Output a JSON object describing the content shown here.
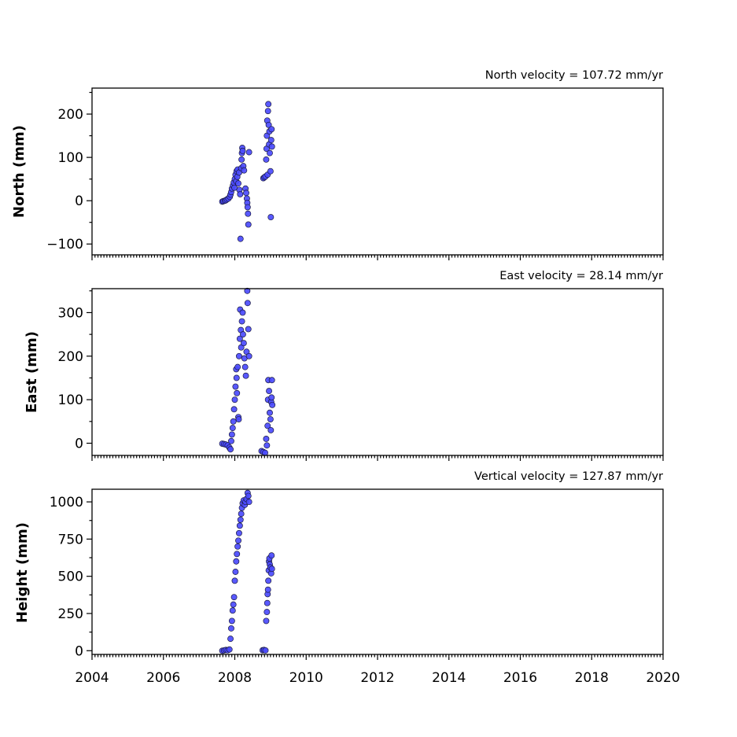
{
  "chart_data": [
    {
      "type": "scatter",
      "velocity_label": "North velocity = 107.72 mm/yr",
      "ylabel": "North (mm)",
      "xlim": [
        2004,
        2020
      ],
      "ylim": [
        -125,
        260
      ],
      "yticks": [
        -100,
        0,
        100,
        200
      ],
      "ytick_labels": [
        "−100",
        "0",
        "100",
        "200"
      ],
      "x_ticklabels_visible": false,
      "points": [
        [
          2007.65,
          -2
        ],
        [
          2007.68,
          -1
        ],
        [
          2007.72,
          0
        ],
        [
          2007.75,
          1
        ],
        [
          2007.78,
          3
        ],
        [
          2007.82,
          5
        ],
        [
          2007.86,
          9
        ],
        [
          2007.88,
          14
        ],
        [
          2007.9,
          20
        ],
        [
          2007.92,
          28
        ],
        [
          2007.95,
          35
        ],
        [
          2007.97,
          42
        ],
        [
          2007.99,
          30
        ],
        [
          2008.0,
          50
        ],
        [
          2008.02,
          60
        ],
        [
          2008.04,
          45
        ],
        [
          2008.05,
          68
        ],
        [
          2008.07,
          55
        ],
        [
          2008.08,
          72
        ],
        [
          2008.1,
          40
        ],
        [
          2008.12,
          65
        ],
        [
          2008.13,
          25
        ],
        [
          2008.15,
          15
        ],
        [
          2008.16,
          -88
        ],
        [
          2008.18,
          75
        ],
        [
          2008.19,
          95
        ],
        [
          2008.2,
          110
        ],
        [
          2008.21,
          122
        ],
        [
          2008.22,
          115
        ],
        [
          2008.24,
          80
        ],
        [
          2008.26,
          70
        ],
        [
          2008.3,
          28
        ],
        [
          2008.32,
          18
        ],
        [
          2008.34,
          5
        ],
        [
          2008.35,
          -5
        ],
        [
          2008.36,
          -15
        ],
        [
          2008.37,
          -30
        ],
        [
          2008.38,
          -55
        ],
        [
          2008.4,
          112
        ],
        [
          2008.8,
          52
        ],
        [
          2008.83,
          54
        ],
        [
          2008.86,
          56
        ],
        [
          2008.88,
          95
        ],
        [
          2008.89,
          120
        ],
        [
          2008.9,
          150
        ],
        [
          2008.91,
          185
        ],
        [
          2008.92,
          60
        ],
        [
          2008.93,
          207
        ],
        [
          2008.94,
          223
        ],
        [
          2008.95,
          175
        ],
        [
          2008.96,
          130
        ],
        [
          2008.97,
          160
        ],
        [
          2008.98,
          110
        ],
        [
          2009.0,
          68
        ],
        [
          2009.01,
          -38
        ],
        [
          2009.02,
          140
        ],
        [
          2009.03,
          165
        ],
        [
          2009.04,
          125
        ]
      ]
    },
    {
      "type": "scatter",
      "velocity_label": "East velocity = 28.14 mm/yr",
      "ylabel": "East (mm)",
      "xlim": [
        2004,
        2020
      ],
      "ylim": [
        -28,
        355
      ],
      "yticks": [
        0,
        100,
        200,
        300
      ],
      "ytick_labels": [
        "0",
        "100",
        "200",
        "300"
      ],
      "x_ticklabels_visible": false,
      "points": [
        [
          2007.65,
          -1
        ],
        [
          2007.7,
          -2
        ],
        [
          2007.75,
          -3
        ],
        [
          2007.8,
          -5
        ],
        [
          2007.85,
          -10
        ],
        [
          2007.88,
          -14
        ],
        [
          2007.9,
          5
        ],
        [
          2007.92,
          20
        ],
        [
          2007.94,
          35
        ],
        [
          2007.96,
          50
        ],
        [
          2007.98,
          78
        ],
        [
          2008.0,
          100
        ],
        [
          2008.02,
          130
        ],
        [
          2008.04,
          170
        ],
        [
          2008.05,
          150
        ],
        [
          2008.06,
          115
        ],
        [
          2008.08,
          175
        ],
        [
          2008.1,
          60
        ],
        [
          2008.11,
          55
        ],
        [
          2008.12,
          200
        ],
        [
          2008.14,
          240
        ],
        [
          2008.15,
          307
        ],
        [
          2008.17,
          260
        ],
        [
          2008.18,
          220
        ],
        [
          2008.2,
          280
        ],
        [
          2008.22,
          300
        ],
        [
          2008.23,
          250
        ],
        [
          2008.25,
          230
        ],
        [
          2008.27,
          195
        ],
        [
          2008.29,
          175
        ],
        [
          2008.31,
          155
        ],
        [
          2008.33,
          210
        ],
        [
          2008.35,
          350
        ],
        [
          2008.36,
          322
        ],
        [
          2008.38,
          262
        ],
        [
          2008.4,
          200
        ],
        [
          2008.75,
          -18
        ],
        [
          2008.8,
          -20
        ],
        [
          2008.85,
          -22
        ],
        [
          2008.88,
          10
        ],
        [
          2008.9,
          -5
        ],
        [
          2008.92,
          40
        ],
        [
          2008.93,
          100
        ],
        [
          2008.94,
          145
        ],
        [
          2008.96,
          120
        ],
        [
          2008.98,
          70
        ],
        [
          2009.0,
          55
        ],
        [
          2009.01,
          30
        ],
        [
          2009.02,
          95
        ],
        [
          2009.03,
          105
        ],
        [
          2009.04,
          145
        ],
        [
          2009.05,
          88
        ]
      ]
    },
    {
      "type": "scatter",
      "velocity_label": "Vertical velocity = 127.87 mm/yr",
      "ylabel": "Height (mm)",
      "xlim": [
        2004,
        2020
      ],
      "ylim": [
        -25,
        1085
      ],
      "yticks": [
        0,
        250,
        500,
        750,
        1000
      ],
      "ytick_labels": [
        "0",
        "250",
        "500",
        "750",
        "1000"
      ],
      "x_ticklabels_visible": true,
      "xticks": [
        2004,
        2006,
        2008,
        2010,
        2012,
        2014,
        2016,
        2018,
        2020
      ],
      "xtick_labels": [
        "2004",
        "2006",
        "2008",
        "2010",
        "2012",
        "2014",
        "2016",
        "2018",
        "2020"
      ],
      "points": [
        [
          2007.65,
          0
        ],
        [
          2007.7,
          2
        ],
        [
          2007.75,
          5
        ],
        [
          2007.8,
          3
        ],
        [
          2007.85,
          8
        ],
        [
          2007.88,
          80
        ],
        [
          2007.9,
          150
        ],
        [
          2007.92,
          200
        ],
        [
          2007.94,
          270
        ],
        [
          2007.96,
          310
        ],
        [
          2007.98,
          360
        ],
        [
          2008.0,
          470
        ],
        [
          2008.02,
          530
        ],
        [
          2008.04,
          600
        ],
        [
          2008.06,
          650
        ],
        [
          2008.08,
          700
        ],
        [
          2008.1,
          740
        ],
        [
          2008.12,
          790
        ],
        [
          2008.14,
          840
        ],
        [
          2008.16,
          880
        ],
        [
          2008.18,
          920
        ],
        [
          2008.2,
          960
        ],
        [
          2008.22,
          990
        ],
        [
          2008.25,
          1010
        ],
        [
          2008.28,
          980
        ],
        [
          2008.3,
          1000
        ],
        [
          2008.33,
          1020
        ],
        [
          2008.36,
          1060
        ],
        [
          2008.38,
          1040
        ],
        [
          2008.4,
          1000
        ],
        [
          2008.78,
          3
        ],
        [
          2008.82,
          5
        ],
        [
          2008.86,
          2
        ],
        [
          2008.88,
          200
        ],
        [
          2008.9,
          260
        ],
        [
          2008.91,
          320
        ],
        [
          2008.92,
          380
        ],
        [
          2008.93,
          410
        ],
        [
          2008.94,
          470
        ],
        [
          2008.95,
          540
        ],
        [
          2008.96,
          600
        ],
        [
          2008.97,
          620
        ],
        [
          2008.98,
          580
        ],
        [
          2009.0,
          560
        ],
        [
          2009.02,
          520
        ],
        [
          2009.03,
          640
        ],
        [
          2009.04,
          550
        ]
      ]
    }
  ]
}
